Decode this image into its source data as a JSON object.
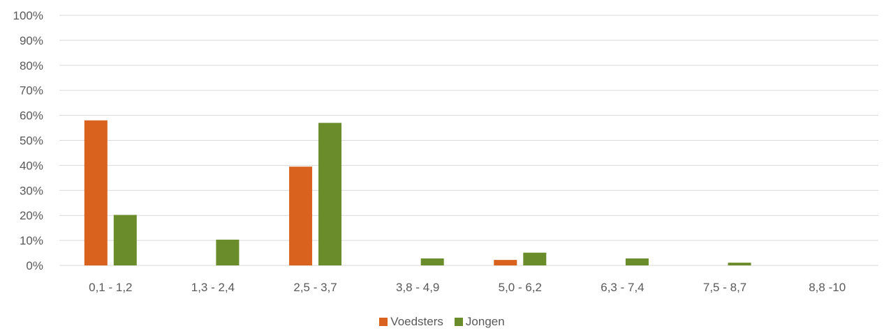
{
  "chart_data": {
    "type": "bar",
    "categories": [
      "0,1 - 1,2",
      "1,3 - 2,4",
      "2,5 - 3,7",
      "3,8 - 4,9",
      "5,0 - 6,2",
      "6,3 - 7,4",
      "7,5 - 8,7",
      "8,8 -10"
    ],
    "series": [
      {
        "name": "Voedsters",
        "color": "#d9631e",
        "values": [
          58,
          0,
          39.5,
          0,
          2.2,
          0,
          0,
          0
        ]
      },
      {
        "name": "Jongen",
        "color": "#6b8c2a",
        "values": [
          20.2,
          10.3,
          57,
          2.8,
          5.1,
          2.8,
          1.1,
          0
        ]
      }
    ],
    "yticks": [
      "0%",
      "10%",
      "20%",
      "30%",
      "40%",
      "50%",
      "60%",
      "70%",
      "80%",
      "90%",
      "100%"
    ],
    "ylim": [
      0,
      100
    ],
    "title": "",
    "xlabel": "",
    "ylabel": "",
    "grid": true,
    "legend_position": "bottom"
  }
}
